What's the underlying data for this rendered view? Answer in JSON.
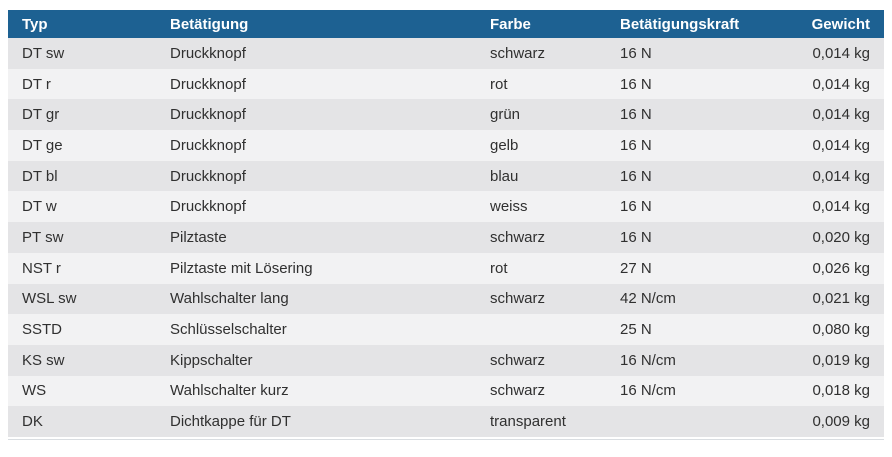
{
  "table": {
    "columns": [
      {
        "key": "typ",
        "label": "Typ",
        "align": "left"
      },
      {
        "key": "betaetigung",
        "label": "Betätigung",
        "align": "left"
      },
      {
        "key": "farbe",
        "label": "Farbe",
        "align": "left"
      },
      {
        "key": "betaetigungskraft",
        "label": "Betätigungskraft",
        "align": "left"
      },
      {
        "key": "gewicht",
        "label": "Gewicht",
        "align": "right"
      }
    ],
    "rows": [
      [
        "DT sw",
        "Druckknopf",
        "schwarz",
        "16 N",
        "0,014 kg"
      ],
      [
        "DT r",
        "Druckknopf",
        "rot",
        "16 N",
        "0,014 kg"
      ],
      [
        "DT gr",
        "Druckknopf",
        "grün",
        "16 N",
        "0,014 kg"
      ],
      [
        "DT ge",
        "Druckknopf",
        "gelb",
        "16 N",
        "0,014 kg"
      ],
      [
        "DT bl",
        "Druckknopf",
        "blau",
        "16 N",
        "0,014 kg"
      ],
      [
        "DT w",
        "Druckknopf",
        "weiss",
        "16 N",
        "0,014 kg"
      ],
      [
        "PT sw",
        "Pilztaste",
        "schwarz",
        "16 N",
        "0,020 kg"
      ],
      [
        "NST r",
        "Pilztaste mit Lösering",
        "rot",
        "27 N",
        "0,026 kg"
      ],
      [
        "WSL sw",
        "Wahlschalter lang",
        "schwarz",
        "42 N/cm",
        "0,021 kg"
      ],
      [
        "SSTD",
        "Schlüsselschalter",
        "",
        "25 N",
        "0,080 kg"
      ],
      [
        "KS sw",
        "Kippschalter",
        "schwarz",
        "16 N/cm",
        "0,019 kg"
      ],
      [
        "WS",
        "Wahlschalter kurz",
        "schwarz",
        "16 N/cm",
        "0,018 kg"
      ],
      [
        "DK",
        "Dichtkappe für DT",
        "transparent",
        "",
        "0,009 kg"
      ]
    ]
  },
  "colors": {
    "header_bg": "#1d6192",
    "header_text": "#ffffff",
    "row_odd_bg": "#e4e4e6",
    "row_even_bg": "#f2f2f3",
    "body_text": "#303030",
    "rule_color": "#d9dde1"
  }
}
